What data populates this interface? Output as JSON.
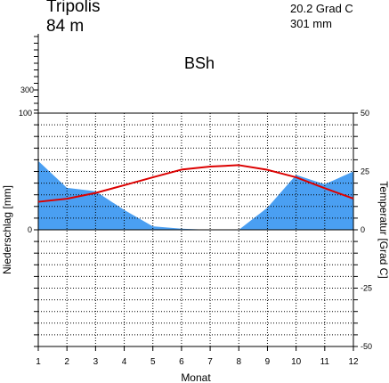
{
  "header": {
    "station": "Tripolis",
    "altitude": "84 m",
    "annual_temperature": "20.2 Grad C",
    "annual_precipitation": "301 mm",
    "climate_class": "BSh"
  },
  "chart_data": {
    "type": "line",
    "x": [
      1,
      2,
      3,
      4,
      5,
      6,
      7,
      8,
      9,
      10,
      11,
      12
    ],
    "xlabel": "Monat",
    "ylabel_left": "Niederschlag [mm]",
    "ylabel_right": "Temperatur [Grad C]",
    "series": [
      {
        "axis": "left",
        "style": "area",
        "color": "#4a9ff2",
        "values": [
          59,
          36,
          33,
          17,
          3,
          1,
          0,
          0,
          19,
          47,
          39,
          50
        ]
      },
      {
        "axis": "right",
        "style": "line",
        "color": "#dc0000",
        "values": [
          12,
          13.3,
          15.8,
          19.1,
          22.5,
          25.8,
          27.1,
          27.7,
          25.7,
          22.5,
          17.8,
          13.4
        ]
      }
    ],
    "left_ticks_upper": [
      "300"
    ],
    "left_ticks": [
      "100",
      "0"
    ],
    "right_ticks": [
      "50",
      "25",
      "0",
      "-25",
      "-50"
    ],
    "precipitation_range": [
      -100,
      100
    ],
    "temperature_range": [
      -50,
      50
    ],
    "grid": true
  }
}
